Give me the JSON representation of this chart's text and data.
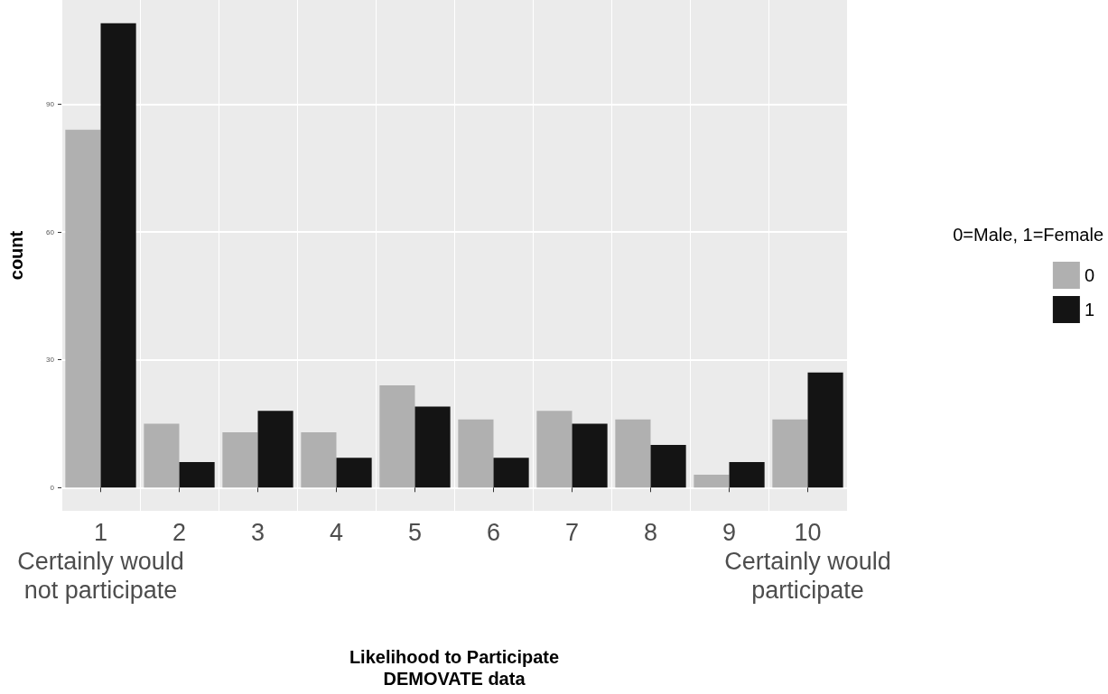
{
  "chart_data": {
    "type": "bar",
    "xlabel": "Likelihood to Participate\nDEMOVATE data",
    "ylabel": "count",
    "legend_title": "0=Male, 1=Female",
    "categories": [
      "1\nCertainly would\nnot participate",
      "2",
      "3",
      "4",
      "5",
      "6",
      "7",
      "8",
      "9",
      "10\nCertainly would\nparticipate"
    ],
    "series": [
      {
        "name": "0",
        "color": "#b0b0b0",
        "values": [
          84,
          15,
          13,
          13,
          24,
          16,
          18,
          16,
          3,
          16
        ]
      },
      {
        "name": "1",
        "color": "#141414",
        "values": [
          109,
          6,
          18,
          7,
          19,
          7,
          15,
          10,
          6,
          27
        ]
      }
    ],
    "ylim": [
      -5.45,
      114.45
    ],
    "yticks": [
      0,
      30,
      60,
      90
    ],
    "grid": true,
    "legend": "right"
  }
}
